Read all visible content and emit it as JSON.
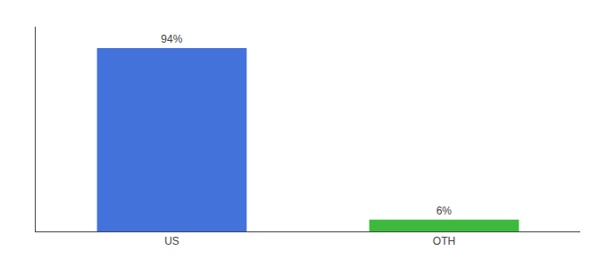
{
  "chart_data": {
    "type": "bar",
    "categories": [
      "US",
      "OTH"
    ],
    "values": [
      94,
      6
    ],
    "value_labels": [
      "94%",
      "6%"
    ],
    "colors": [
      "#4472db",
      "#3dba3d"
    ],
    "data_labels": true,
    "ylim": [
      0,
      105
    ],
    "tick_labels": "x",
    "grid": false
  }
}
